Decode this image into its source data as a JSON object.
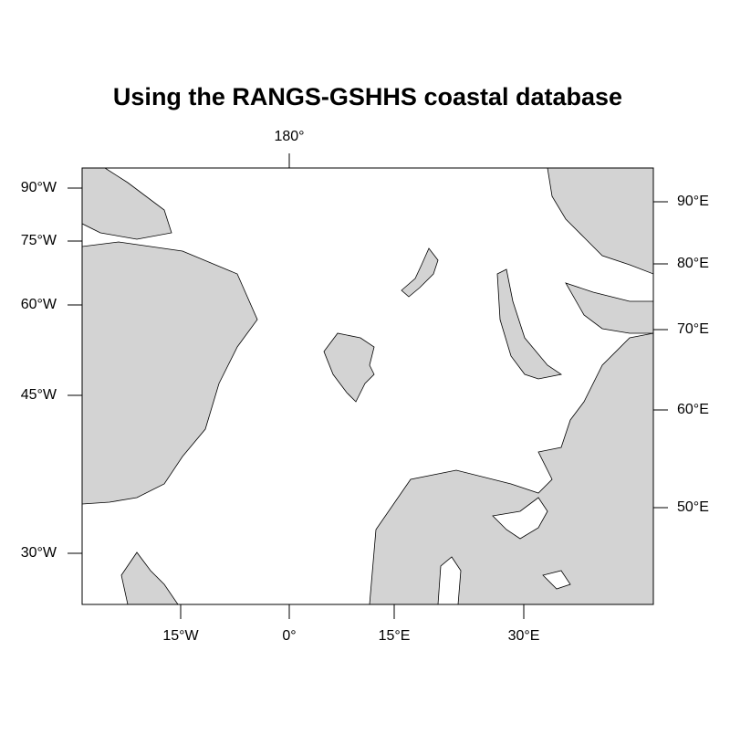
{
  "title": "Using the RANGS-GSHHS coastal database",
  "top_labels": [
    "180°"
  ],
  "bottom_labels": [
    "15°W",
    "0°",
    "15°E",
    "30°E"
  ],
  "left_labels": [
    "90°W",
    "75°W",
    "60°W",
    "45°W",
    "30°W"
  ],
  "right_labels": [
    "90°E",
    "80°E",
    "70°E",
    "60°E",
    "50°E"
  ]
}
